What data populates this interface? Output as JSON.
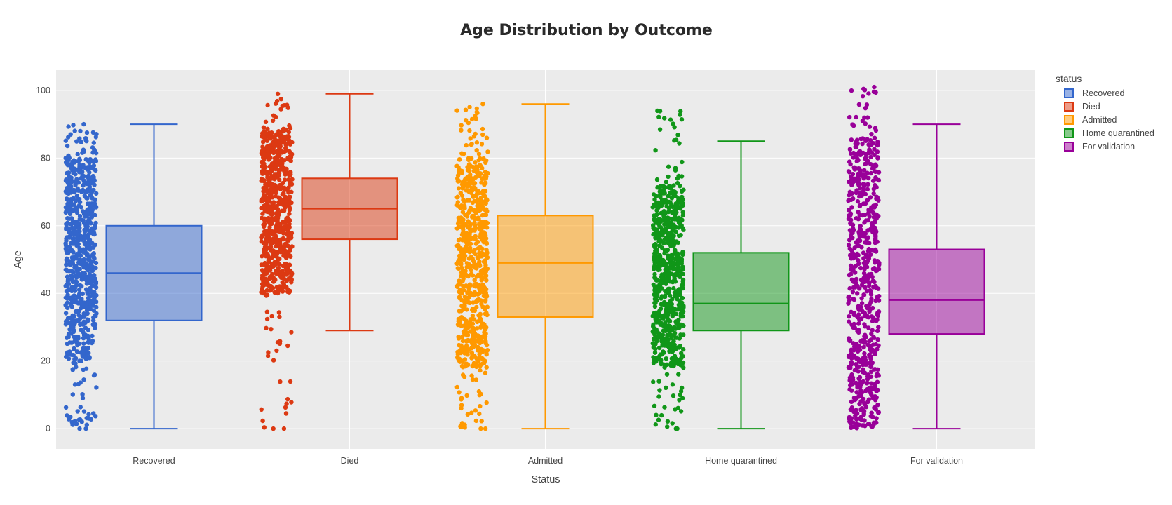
{
  "chart_data": {
    "type": "box",
    "title": "Age Distribution by Outcome",
    "xlabel": "Status",
    "ylabel": "Age",
    "ylim": [
      -6,
      106
    ],
    "yticks": [
      0,
      20,
      40,
      60,
      80,
      100
    ],
    "categories": [
      "Recovered",
      "Died",
      "Admitted",
      "Home quarantined",
      "For validation"
    ],
    "legend_title": "status",
    "legend_position": "top-right",
    "grid": true,
    "points_shown": "all",
    "series": [
      {
        "name": "Recovered",
        "color": "#3366CC",
        "min": 0,
        "q1": 32,
        "median": 46,
        "q3": 60,
        "max": 90,
        "points": {
          "dense_low": 20,
          "dense_high": 80,
          "data_min": 0,
          "data_max": 90,
          "low_tail_count": 38,
          "high_tail_count": 30
        }
      },
      {
        "name": "Died",
        "color": "#DC3912",
        "min": 29,
        "q1": 56,
        "median": 65,
        "q3": 74,
        "max": 99,
        "points": {
          "dense_low": 40,
          "dense_high": 88,
          "data_min": 0,
          "data_max": 99,
          "low_tail_count": 28,
          "high_tail_count": 22
        }
      },
      {
        "name": "Admitted",
        "color": "#FF9900",
        "min": 0,
        "q1": 33,
        "median": 49,
        "q3": 63,
        "max": 96,
        "points": {
          "dense_low": 18,
          "dense_high": 80,
          "data_min": 0,
          "data_max": 96,
          "low_tail_count": 30,
          "high_tail_count": 30
        }
      },
      {
        "name": "Home quarantined",
        "color": "#109618",
        "min": 0,
        "q1": 29,
        "median": 37,
        "q3": 52,
        "max": 85,
        "points": {
          "dense_low": 18,
          "dense_high": 72,
          "data_min": 0,
          "data_max": 94,
          "low_tail_count": 26,
          "high_tail_count": 26
        }
      },
      {
        "name": "For validation",
        "color": "#990099",
        "min": 0,
        "q1": 28,
        "median": 38,
        "q3": 53,
        "max": 90,
        "points": {
          "dense_low": 0,
          "dense_high": 86,
          "data_min": 0,
          "data_max": 101,
          "low_tail_count": 0,
          "high_tail_count": 22
        }
      }
    ]
  }
}
